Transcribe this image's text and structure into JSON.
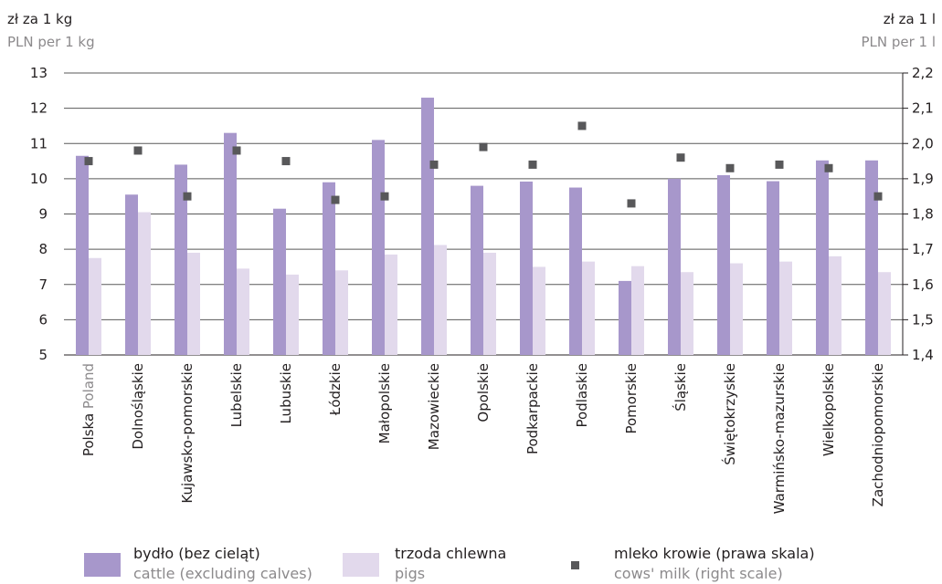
{
  "chart_data": {
    "type": "bar",
    "left_axis": {
      "title": "zł za 1 kg",
      "subtitle": "PLN per 1 kg",
      "ylim": [
        5,
        13
      ],
      "ticks": [
        5,
        6,
        7,
        8,
        9,
        10,
        11,
        12,
        13
      ]
    },
    "right_axis": {
      "title": "zł za 1 l",
      "subtitle": "PLN per 1 l",
      "ylim": [
        1.4,
        2.2
      ],
      "ticks": [
        "1,4",
        "1,5",
        "1,6",
        "1,7",
        "1,8",
        "1,9",
        "2,0",
        "2,1",
        "2,2"
      ]
    },
    "categories": [
      {
        "pl": "Polska",
        "en": "Poland"
      },
      {
        "pl": "Dolnośląskie",
        "en": ""
      },
      {
        "pl": "Kujawsko-pomorskie",
        "en": ""
      },
      {
        "pl": "Lubelskie",
        "en": ""
      },
      {
        "pl": "Lubuskie",
        "en": ""
      },
      {
        "pl": "Łódzkie",
        "en": ""
      },
      {
        "pl": "Małopolskie",
        "en": ""
      },
      {
        "pl": "Mazowieckie",
        "en": ""
      },
      {
        "pl": "Opolskie",
        "en": ""
      },
      {
        "pl": "Podkarpackie",
        "en": ""
      },
      {
        "pl": "Podlaskie",
        "en": ""
      },
      {
        "pl": "Pomorskie",
        "en": ""
      },
      {
        "pl": "Śląskie",
        "en": ""
      },
      {
        "pl": "Świętokrzyskie",
        "en": ""
      },
      {
        "pl": "Warmińsko-mazurskie",
        "en": ""
      },
      {
        "pl": "Wielkopolskie",
        "en": ""
      },
      {
        "pl": "Zachodniopomorskie",
        "en": ""
      }
    ],
    "series": [
      {
        "name": "bydło (bez cieląt)",
        "name_en": "cattle (excluding calves)",
        "type": "bar",
        "axis": "left",
        "color": "#a797cb",
        "values": [
          10.65,
          9.55,
          10.4,
          11.3,
          9.15,
          9.9,
          11.1,
          12.3,
          9.8,
          9.92,
          9.75,
          7.1,
          10.0,
          10.1,
          9.93,
          10.52,
          10.52
        ]
      },
      {
        "name": "trzoda chlewna",
        "name_en": "pigs",
        "type": "bar",
        "axis": "left",
        "color": "#e2d9ec",
        "values": [
          7.75,
          9.05,
          7.9,
          7.45,
          7.28,
          7.4,
          7.85,
          8.12,
          7.9,
          7.5,
          7.65,
          7.52,
          7.35,
          7.6,
          7.65,
          7.8,
          7.35
        ]
      },
      {
        "name": "mleko krowie (prawa skala)",
        "name_en": "cows' milk  (right scale)",
        "type": "scatter",
        "axis": "right",
        "color": "#58585a",
        "values": [
          1.95,
          1.98,
          1.85,
          1.98,
          1.95,
          1.84,
          1.85,
          1.94,
          1.99,
          1.94,
          2.05,
          1.83,
          1.96,
          1.93,
          1.94,
          1.93,
          1.85
        ]
      }
    ],
    "grid": true,
    "legend_position": "bottom"
  }
}
